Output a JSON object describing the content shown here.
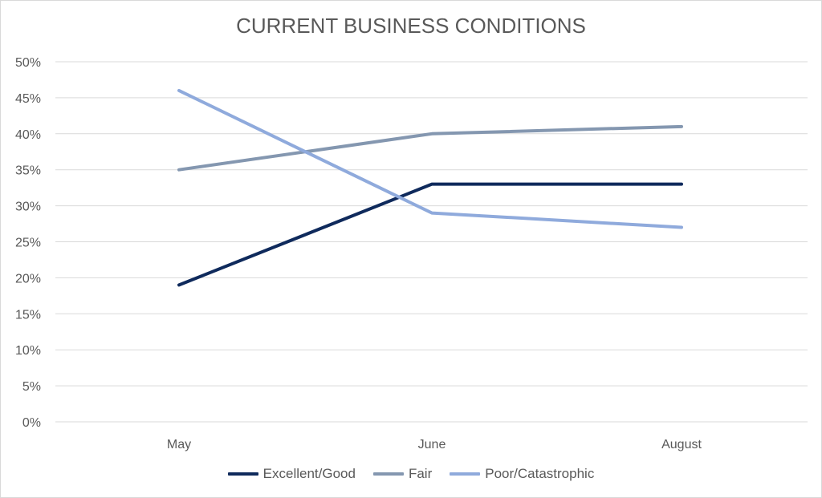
{
  "chart_data": {
    "type": "line",
    "title": "CURRENT BUSINESS CONDITIONS",
    "xlabel": "",
    "ylabel": "",
    "categories": [
      "May",
      "June",
      "August"
    ],
    "ylim": [
      0,
      0.5
    ],
    "yticks": [
      0,
      0.05,
      0.1,
      0.15,
      0.2,
      0.25,
      0.3,
      0.35,
      0.4,
      0.45,
      0.5
    ],
    "ytick_labels": [
      "0%",
      "5%",
      "10%",
      "15%",
      "20%",
      "25%",
      "30%",
      "35%",
      "40%",
      "45%",
      "50%"
    ],
    "grid": true,
    "legend_position": "bottom",
    "series": [
      {
        "name": "Excellent/Good",
        "values": [
          0.19,
          0.33,
          0.33
        ],
        "color": "#0f2a5c"
      },
      {
        "name": "Fair",
        "values": [
          0.35,
          0.4,
          0.41
        ],
        "color": "#8497b0"
      },
      {
        "name": "Poor/Catastrophic",
        "values": [
          0.46,
          0.29,
          0.27
        ],
        "color": "#8faadc"
      }
    ]
  }
}
